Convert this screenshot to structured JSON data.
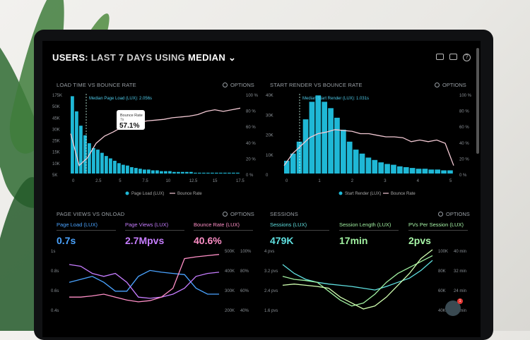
{
  "header": {
    "prefix": "USERS:",
    "middle": "LAST 7 DAYS",
    "using": "USING",
    "metric": "MEDIAN"
  },
  "options_label": "OPTIONS",
  "panels": {
    "load_time": {
      "title": "LOAD TIME VS BOUNCE RATE",
      "marker": "Median Page Load (LUX): 2.056s",
      "tooltip": {
        "label": "Bounce Rate",
        "sub": "7s",
        "value": "57.1%"
      },
      "legend": [
        "Page Load (LUX)",
        "Bounce Rate"
      ],
      "yleft": [
        "175K",
        "50K",
        "45K",
        "30K",
        "25K",
        "15K",
        "10K",
        "5K"
      ],
      "yright": [
        "100 %",
        "80 %",
        "60 %",
        "40 %",
        "20 %",
        "0 %"
      ],
      "x": [
        "0",
        "2.5",
        "5",
        "7.5",
        "10",
        "12.5",
        "15",
        "17.5"
      ]
    },
    "start_render": {
      "title": "START RENDER VS BOUNCE RATE",
      "marker": "Median Start Render (LUX): 1.031s",
      "legend": [
        "Start Render (LUX)",
        "Bounce Rate"
      ],
      "yleft": [
        "40K",
        "30K",
        "20K",
        "10K",
        "0"
      ],
      "yright": [
        "100 %",
        "80 %",
        "60 %",
        "40 %",
        "20 %",
        "0 %"
      ],
      "x": [
        "0",
        "1",
        "2",
        "3",
        "4",
        "5"
      ]
    },
    "page_views": {
      "title": "PAGE VIEWS VS ONLOAD",
      "kpis": [
        {
          "label": "Page Load (LUX)",
          "value": "0.7s",
          "color": "#4aa3ff"
        },
        {
          "label": "Page Views (LUX)",
          "value": "2.7Mpvs",
          "color": "#c77dff"
        },
        {
          "label": "Bounce Rate (LUX)",
          "value": "40.6%",
          "color": "#ff8fc7"
        }
      ],
      "yleft": [
        "1s",
        "0.8s",
        "0.6s",
        "0.4s"
      ],
      "yright1": [
        "500K",
        "400K",
        "300K",
        "200K"
      ],
      "yright2": [
        "100%",
        "80%",
        "60%",
        "40%"
      ]
    },
    "sessions": {
      "title": "SESSIONS",
      "kpis": [
        {
          "label": "Sessions (LUX)",
          "value": "479K",
          "color": "#5fe0e0"
        },
        {
          "label": "Session Length (LUX)",
          "value": "17min",
          "color": "#a0f0a0"
        },
        {
          "label": "PVs Per Session (LUX)",
          "value": "2pvs",
          "color": "#a8f7a8"
        }
      ],
      "yleft": [
        "4 pvs",
        "3.2 pvs",
        "2.4 pvs",
        "1.6 pvs"
      ],
      "yright1": [
        "100K",
        "80K",
        "60K",
        "40K"
      ],
      "yright2": [
        "40 min",
        "32 min",
        "24 min",
        "16 min"
      ]
    }
  },
  "chat_badge": "1",
  "colors": {
    "bar": "#1fb8d6",
    "bounce": "#f3c9d4",
    "accent_blue": "#4aa3ff",
    "green": "#9ff2a0"
  }
}
